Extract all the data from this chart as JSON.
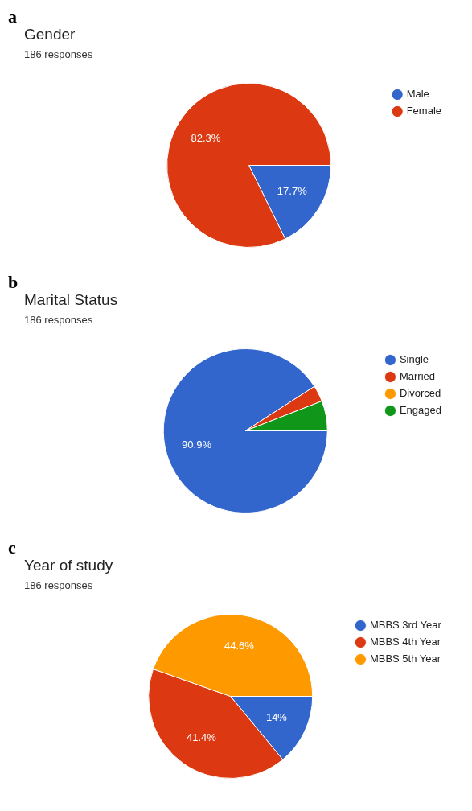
{
  "chart_data": [
    {
      "type": "pie",
      "title": "Gender",
      "subtitle": "186 responses",
      "annotations": [
        "a"
      ],
      "categories": [
        "Male",
        "Female"
      ],
      "values": [
        17.7,
        82.3
      ],
      "colors": [
        "#3366cc",
        "#dc3912"
      ],
      "value_labels": [
        "17.7%",
        "82.3%"
      ],
      "legend": "top right"
    },
    {
      "type": "pie",
      "title": "Marital Status",
      "subtitle": "186 responses",
      "annotations": [
        "b"
      ],
      "categories": [
        "Single",
        "Married",
        "Divorced",
        "Engaged"
      ],
      "values": [
        90.9,
        3.2,
        0,
        5.9
      ],
      "colors": [
        "#3366cc",
        "#dc3912",
        "#ff9900",
        "#109618"
      ],
      "value_labels": [
        "90.9%",
        null,
        null,
        null
      ],
      "legend": "top right"
    },
    {
      "type": "pie",
      "title": "Year of study",
      "subtitle": "186 responses",
      "annotations": [
        "c"
      ],
      "categories": [
        "MBBS 3rd Year",
        "MBBS 4th Year",
        "MBBS 5th Year"
      ],
      "values": [
        14,
        41.4,
        44.6
      ],
      "colors": [
        "#3366cc",
        "#dc3912",
        "#ff9900"
      ],
      "value_labels": [
        "14%",
        "41.4%",
        "44.6%"
      ],
      "legend": "top right"
    }
  ]
}
